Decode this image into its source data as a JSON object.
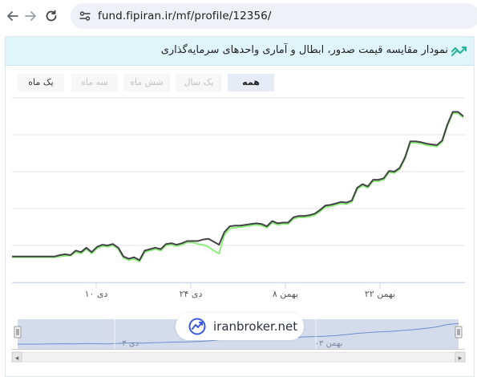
{
  "browser": {
    "url": "fund.fipiran.ir/mf/profile/12356/"
  },
  "panel": {
    "title": "نمودار مقایسه قیمت صدور، ابطال و آماری واحدهای سرمایه‌گذاری",
    "icon": "chart-trend-icon",
    "range_buttons": [
      {
        "label": "همه",
        "active": true
      },
      {
        "label": "یک سال",
        "active": false
      },
      {
        "label": "شش ماه",
        "active": false
      },
      {
        "label": "سه ماه",
        "active": false
      },
      {
        "label": "یک ماه",
        "active": false
      }
    ]
  },
  "chart_data": {
    "type": "line",
    "x_tick_labels": [
      "دی ۱۰",
      "دی ۲۴",
      "بهمن ۸",
      "بهمن ۲۲"
    ],
    "navigator_labels": [
      "دی ۰۳",
      "بهمن ۰۳"
    ],
    "grid": true,
    "colors": {
      "issue": "#222222",
      "cancel": "#90ed7d",
      "statistical": "#434348",
      "navigator_fill": "#c5d0e6",
      "navigator_line": "#6f8fcf"
    },
    "series": [
      {
        "values": [
          0,
          0,
          0,
          0,
          0,
          0,
          0,
          0,
          0,
          0.2,
          0.3,
          0.2,
          0.8,
          0.6,
          1.2,
          0.6,
          1.3,
          1.6,
          1.5,
          1.7,
          1.2,
          0,
          -0.3,
          -0.1,
          -0.5,
          0.8,
          1.0,
          1.2,
          1.0,
          1.7,
          1.8,
          1.6,
          1.8,
          2.1,
          2.1,
          2.1,
          2.3,
          2.4,
          2.0,
          1.6,
          3.3,
          4.1,
          4.2,
          4.2,
          4.3,
          4.4,
          4.5,
          4.4,
          4.1,
          4.8,
          4.5,
          4.6,
          4.6,
          5.3,
          5.5,
          5.5,
          5.6,
          5.8,
          6.3,
          6.9,
          7.0,
          7.2,
          7.4,
          7.3,
          7.6,
          9.3,
          9.8,
          9.5,
          10.4,
          10.4,
          10.6,
          11.6,
          11.5,
          12.0,
          13.4,
          15.6,
          15.6,
          15.5,
          15.3,
          15.2,
          15.1,
          15.7,
          17.9,
          19.6,
          19.6,
          19.0
        ]
      },
      {
        "values": [
          -0.1,
          -0.1,
          -0.1,
          -0.1,
          -0.1,
          -0.1,
          -0.1,
          -0.1,
          -0.1,
          0.0,
          0.1,
          0.1,
          0.6,
          0.4,
          1.0,
          0.4,
          1.1,
          1.4,
          1.3,
          1.5,
          1.0,
          -0.2,
          -0.5,
          -0.3,
          -0.7,
          0.6,
          0.8,
          1.0,
          0.8,
          1.5,
          1.6,
          1.4,
          1.6,
          1.9,
          1.9,
          1.7,
          1.6,
          1.3,
          0.8,
          0.4,
          2.9,
          3.8,
          3.9,
          4.0,
          4.1,
          4.2,
          4.3,
          4.2,
          3.9,
          4.6,
          4.3,
          4.4,
          4.4,
          5.1,
          5.3,
          5.3,
          5.4,
          5.6,
          6.1,
          6.7,
          6.8,
          7.0,
          7.2,
          7.1,
          7.4,
          9.1,
          9.6,
          9.3,
          10.2,
          10.2,
          10.4,
          11.4,
          11.3,
          11.8,
          13.2,
          15.4,
          15.4,
          15.3,
          15.1,
          15.0,
          14.9,
          15.5,
          17.7,
          19.4,
          19.4,
          18.8
        ]
      }
    ],
    "navigator_values": [
      0,
      0,
      0,
      0.1,
      0.2,
      0.1,
      0.3,
      0.2,
      0.1,
      0.4,
      0.6,
      0.5,
      0.7,
      0.8,
      1.0,
      1.1,
      1.3,
      1.6,
      2.2,
      2.4,
      2.6,
      2.8,
      3.0,
      3.1,
      3.3,
      3.4,
      3.6,
      3.8,
      4.1,
      4.6,
      5.2,
      5.6,
      5.9,
      6.2,
      6.6,
      7.0,
      7.6,
      8.3,
      9.5,
      10.0
    ]
  },
  "watermark": {
    "text": "iranbroker.net"
  }
}
